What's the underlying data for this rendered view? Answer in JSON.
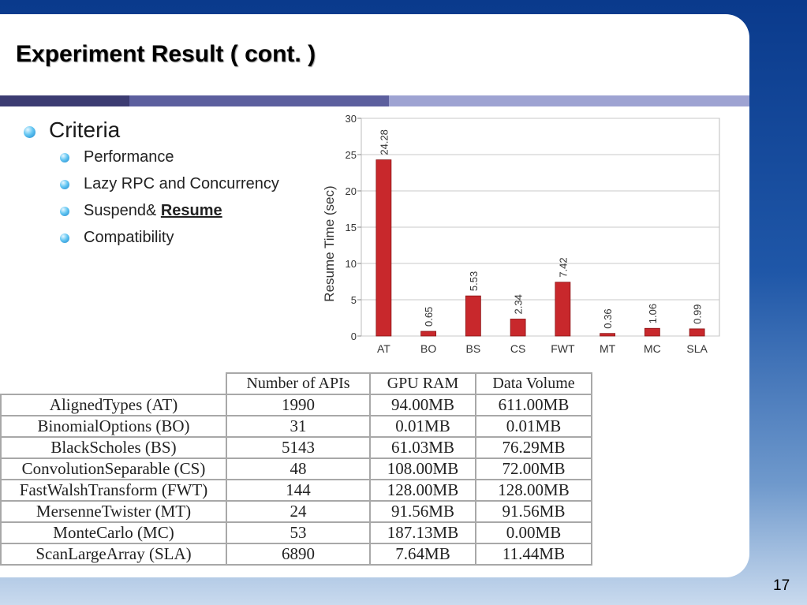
{
  "slide": {
    "title": "Experiment Result ( cont. )",
    "page_number": "17",
    "divider_colors": [
      "#3c3c72",
      "#5c5f9e",
      "#9ea3d2"
    ]
  },
  "bullets": {
    "main": "Criteria",
    "subs": [
      {
        "text": "Performance"
      },
      {
        "text": "Lazy RPC and Concurrency"
      },
      {
        "text": "Suspend& ",
        "emph": "Resume"
      },
      {
        "text": "Compatibility"
      }
    ]
  },
  "chart_data": {
    "type": "bar",
    "categories": [
      "AT",
      "BO",
      "BS",
      "CS",
      "FWT",
      "MT",
      "MC",
      "SLA"
    ],
    "values": [
      24.28,
      0.65,
      5.53,
      2.34,
      7.42,
      0.36,
      1.06,
      0.99
    ],
    "value_labels": [
      "24.28",
      "0.65",
      "5.53",
      "2.34",
      "7.42",
      "0.36",
      "1.06",
      "0.99"
    ],
    "ylabel": "Resume Time (sec)",
    "ylim": [
      0,
      30
    ],
    "yticks": [
      0,
      5,
      10,
      15,
      20,
      25,
      30
    ],
    "grid": true,
    "bar_color": "#c8282c"
  },
  "table": {
    "headers": [
      "Number of APIs",
      "GPU RAM",
      "Data Volume"
    ],
    "rows": [
      {
        "name": "AlignedTypes (AT)",
        "apis": "1990",
        "gpu_ram": "94.00MB",
        "data_volume": "611.00MB"
      },
      {
        "name": "BinomialOptions (BO)",
        "apis": "31",
        "gpu_ram": "0.01MB",
        "data_volume": "0.01MB"
      },
      {
        "name": "BlackScholes (BS)",
        "apis": "5143",
        "gpu_ram": "61.03MB",
        "data_volume": "76.29MB"
      },
      {
        "name": "ConvolutionSeparable (CS)",
        "apis": "48",
        "gpu_ram": "108.00MB",
        "data_volume": "72.00MB"
      },
      {
        "name": "FastWalshTransform (FWT)",
        "apis": "144",
        "gpu_ram": "128.00MB",
        "data_volume": "128.00MB"
      },
      {
        "name": "MersenneTwister (MT)",
        "apis": "24",
        "gpu_ram": "91.56MB",
        "data_volume": "91.56MB"
      },
      {
        "name": "MonteCarlo (MC)",
        "apis": "53",
        "gpu_ram": "187.13MB",
        "data_volume": "0.00MB"
      },
      {
        "name": "ScanLargeArray (SLA)",
        "apis": "6890",
        "gpu_ram": "7.64MB",
        "data_volume": "11.44MB"
      }
    ]
  }
}
